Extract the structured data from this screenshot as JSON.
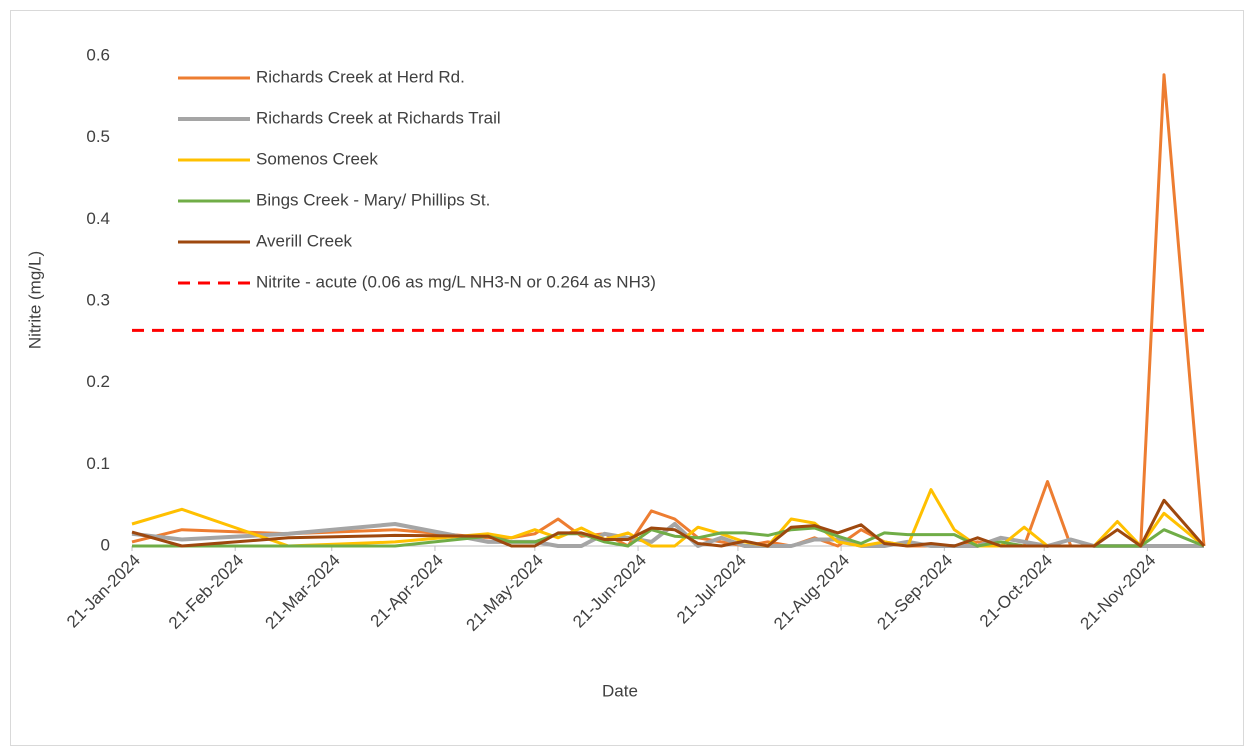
{
  "chart_data": {
    "type": "line",
    "x_label": "Date",
    "y_label": "Nitrite (mg/L)",
    "x": [
      "2024-01-21",
      "2024-02-05",
      "2024-03-08",
      "2024-04-09",
      "2024-05-07",
      "2024-05-14",
      "2024-05-21",
      "2024-05-28",
      "2024-06-04",
      "2024-06-11",
      "2024-06-18",
      "2024-06-25",
      "2024-07-02",
      "2024-07-09",
      "2024-07-16",
      "2024-07-23",
      "2024-07-30",
      "2024-08-06",
      "2024-08-13",
      "2024-08-20",
      "2024-08-27",
      "2024-09-03",
      "2024-09-10",
      "2024-09-17",
      "2024-09-24",
      "2024-10-01",
      "2024-10-08",
      "2024-10-15",
      "2024-10-22",
      "2024-10-29",
      "2024-11-05",
      "2024-11-12",
      "2024-11-19",
      "2024-11-26",
      "2024-12-08"
    ],
    "xlim": [
      "2024-01-21",
      "2024-12-08"
    ],
    "xticks": [
      {
        "value": "2024-01-21",
        "label": "21-Jan-2024"
      },
      {
        "value": "2024-02-21",
        "label": "21-Feb-2024"
      },
      {
        "value": "2024-03-21",
        "label": "21-Mar-2024"
      },
      {
        "value": "2024-04-21",
        "label": "21-Apr-2024"
      },
      {
        "value": "2024-05-21",
        "label": "21-May-2024"
      },
      {
        "value": "2024-06-21",
        "label": "21-Jun-2024"
      },
      {
        "value": "2024-07-21",
        "label": "21-Jul-2024"
      },
      {
        "value": "2024-08-21",
        "label": "21-Aug-2024"
      },
      {
        "value": "2024-09-21",
        "label": "21-Sep-2024"
      },
      {
        "value": "2024-10-21",
        "label": "21-Oct-2024"
      },
      {
        "value": "2024-11-21",
        "label": "21-Nov-2024"
      }
    ],
    "ylim": [
      0,
      0.6
    ],
    "yticks": [
      0,
      0.1,
      0.2,
      0.3,
      0.4,
      0.5,
      0.6
    ],
    "grid": false,
    "legend": "top-left",
    "series": [
      {
        "name": "Richards Creek at Herd Rd.",
        "color": "#ed7d31",
        "width": 3,
        "values": [
          0.005,
          0.02,
          0.015,
          0.02,
          0.01,
          0.01,
          0.015,
          0.033,
          0.012,
          0.015,
          0.0,
          0.043,
          0.033,
          0.01,
          0.005,
          0.0,
          0.005,
          0.0,
          0.01,
          0.0,
          0.02,
          0.005,
          0.0,
          0.0,
          0.0,
          0.005,
          0.0,
          0.0,
          0.079,
          0.0,
          0.0,
          0.0,
          0.0,
          0.577,
          0.0
        ]
      },
      {
        "name": "Richards Creek at Richards Trail",
        "color": "#a5a5a5",
        "width": 4,
        "values": [
          0.015,
          0.008,
          0.015,
          0.027,
          0.005,
          0.005,
          0.005,
          0.0,
          0.0,
          0.015,
          0.01,
          0.005,
          0.027,
          0.0,
          0.01,
          0.0,
          0.0,
          0.0,
          0.008,
          0.008,
          0.0,
          0.0,
          0.005,
          0.0,
          0.0,
          0.0,
          0.01,
          0.005,
          0.0,
          0.008,
          0.0,
          0.0,
          0.0,
          0.0,
          0.0
        ]
      },
      {
        "name": "Somenos Creek",
        "color": "#ffc000",
        "width": 3,
        "values": [
          0.027,
          0.045,
          0.0,
          0.005,
          0.015,
          0.01,
          0.02,
          0.01,
          0.022,
          0.008,
          0.016,
          0.0,
          0.0,
          0.023,
          0.015,
          0.005,
          0.0,
          0.033,
          0.028,
          0.005,
          0.0,
          0.005,
          0.0,
          0.069,
          0.02,
          0.0,
          0.0,
          0.023,
          0.0,
          0.0,
          0.0,
          0.03,
          0.0,
          0.04,
          0.0
        ]
      },
      {
        "name": "Bings Creek - Mary/ Phillips St.",
        "color": "#70ad47",
        "width": 3,
        "values": [
          0.0,
          0.0,
          0.0,
          0.0,
          0.012,
          0.005,
          0.005,
          0.015,
          0.015,
          0.005,
          0.0,
          0.02,
          0.012,
          0.01,
          0.016,
          0.016,
          0.013,
          0.02,
          0.022,
          0.012,
          0.003,
          0.016,
          0.014,
          0.014,
          0.014,
          0.0,
          0.005,
          0.0,
          0.0,
          0.0,
          0.0,
          0.0,
          0.0,
          0.02,
          0.0
        ]
      },
      {
        "name": "Averill Creek",
        "color": "#9e480e",
        "width": 3,
        "values": [
          0.017,
          0.0,
          0.01,
          0.013,
          0.012,
          0.0,
          0.0,
          0.016,
          0.016,
          0.008,
          0.008,
          0.022,
          0.02,
          0.003,
          0.0,
          0.006,
          0.0,
          0.023,
          0.025,
          0.016,
          0.026,
          0.003,
          0.0,
          0.003,
          0.0,
          0.01,
          0.0,
          0.0,
          0.0,
          0.0,
          0.0,
          0.02,
          0.0,
          0.056,
          0.0
        ]
      }
    ],
    "reference_line": {
      "name": "Nitrite - acute (0.06 as mg/L NH3-N or 0.264 as NH3)",
      "value": 0.264,
      "color": "#ff0000",
      "dashed": true
    }
  }
}
